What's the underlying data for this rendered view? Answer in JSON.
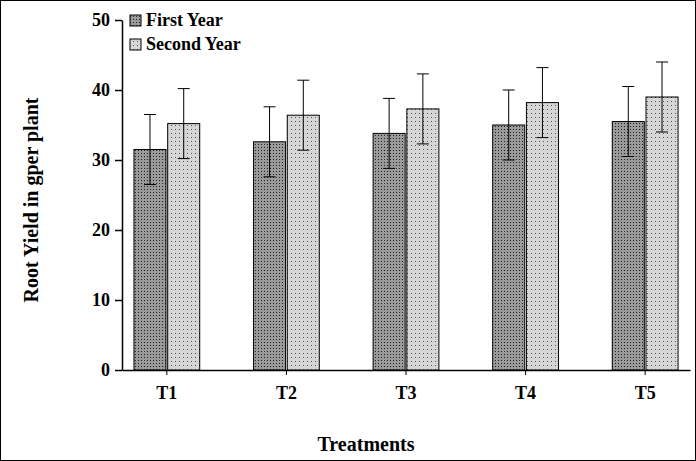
{
  "chart_data": {
    "type": "bar",
    "x_label": "Treatments",
    "y_label": "Root Yield in gper plant",
    "categories": [
      "T1",
      "T2",
      "T3",
      "T4",
      "T5"
    ],
    "series": [
      {
        "name": "First Year",
        "color": "#9a9a9a",
        "values": [
          31.5,
          32.6,
          33.8,
          35.0,
          35.5
        ],
        "errors": [
          5,
          5,
          5,
          5,
          5
        ]
      },
      {
        "name": "Second Year",
        "color": "#d6d6d6",
        "values": [
          35.2,
          36.4,
          37.3,
          38.2,
          39.0
        ],
        "errors": [
          5,
          5,
          5,
          5,
          5
        ]
      }
    ],
    "ylim": [
      0,
      50
    ],
    "yticks": [
      0,
      10,
      20,
      30,
      40,
      50
    ],
    "legend": "top-left",
    "grid": false
  }
}
